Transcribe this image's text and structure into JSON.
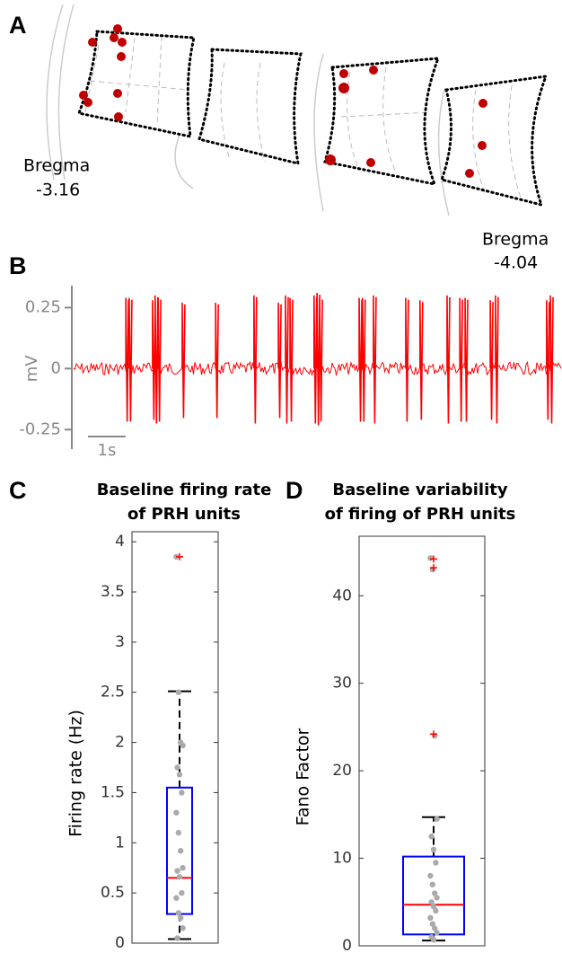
{
  "panel_a": {
    "label": "A",
    "bregma": [
      {
        "name": "Bregma",
        "value": "-3.16"
      },
      {
        "name": "Bregma",
        "value": "-4.04"
      }
    ]
  },
  "chart_data": [
    {
      "type": "trace",
      "panel": "B",
      "ylabel": "mV",
      "color": "#ff0000",
      "xlim": [
        0,
        13
      ],
      "ylim": [
        -0.33,
        0.34
      ],
      "yticks": [
        -0.25,
        0,
        0.25
      ],
      "scalebar": {
        "value": 1,
        "label": "1s"
      },
      "spikes": {
        "x": [
          1.39,
          1.48,
          2.1,
          2.17,
          2.25,
          2.89,
          3.78,
          4.8,
          5.45,
          5.64,
          5.76,
          6.4,
          6.48,
          6.55,
          7.6,
          7.69,
          7.98,
          8.84,
          9.22,
          9.94,
          10.28,
          10.42,
          11.09,
          11.23,
          12.59,
          12.69
        ],
        "values": [
          0.29,
          0.29,
          0.28,
          0.3,
          0.29,
          0.27,
          0.27,
          0.3,
          0.27,
          0.3,
          0.29,
          0.3,
          0.31,
          0.29,
          0.29,
          0.29,
          0.3,
          0.29,
          0.28,
          0.3,
          0.29,
          0.29,
          0.28,
          0.3,
          0.28,
          0.3
        ]
      }
    },
    {
      "type": "box",
      "panel": "C",
      "title": [
        "Baseline firing rate",
        "of PRH units"
      ],
      "ylabel": "Firing rate (Hz)",
      "ylim": [
        0,
        4.1
      ],
      "yticks": [
        0,
        0.5,
        1,
        1.5,
        2,
        2.5,
        3,
        3.5,
        4
      ],
      "box": {
        "whislo": 0.04,
        "q1": 0.29,
        "median": 0.65,
        "q3": 1.55,
        "whishi": 2.51,
        "fliers": [
          3.85
        ],
        "color": "#0000ff",
        "median_color": "#ff0000",
        "flier_color": "#ff0000"
      },
      "points": {
        "color": "#aaaaaa",
        "values": [
          3.85,
          2.5,
          2.0,
          1.97,
          1.75,
          1.68,
          1.5,
          1.3,
          1.1,
          0.92,
          0.75,
          0.72,
          0.66,
          0.5,
          0.45,
          0.3,
          0.25,
          0.15,
          0.05
        ]
      }
    },
    {
      "type": "box",
      "panel": "D",
      "title": [
        "Baseline variability",
        "of firing of PRH units"
      ],
      "ylabel": "Fano Factor",
      "ylim": [
        0,
        46.8
      ],
      "yticks": [
        0,
        10,
        20,
        30,
        40
      ],
      "box": {
        "whislo": 0.6,
        "q1": 1.3,
        "median": 4.7,
        "q3": 10.2,
        "whishi": 14.7,
        "fliers": [
          44.2,
          43.2,
          24.2
        ],
        "color": "#0000ff",
        "median_color": "#ff0000",
        "flier_color": "#ff0000"
      },
      "points": {
        "color": "#aaaaaa",
        "values": [
          44.3,
          43.0,
          24.0,
          14.5,
          12.5,
          11.0,
          9.5,
          8.0,
          7.0,
          6.0,
          5.5,
          5.0,
          4.5,
          4.0,
          3.2,
          2.5,
          2.0,
          1.5,
          1.0,
          0.7
        ]
      }
    }
  ]
}
